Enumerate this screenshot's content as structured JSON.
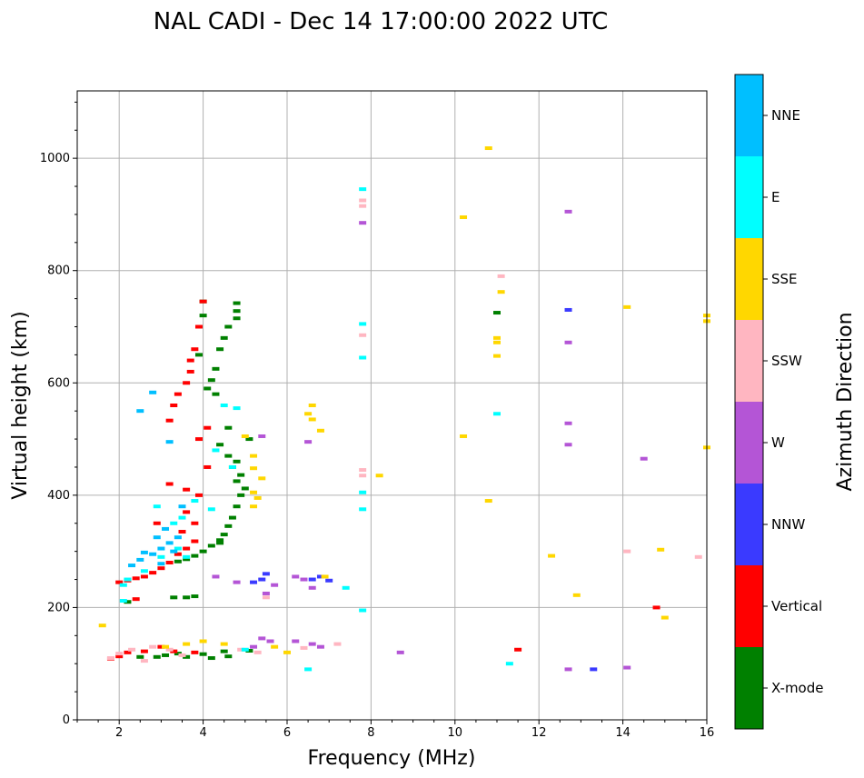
{
  "chart_data": {
    "type": "scatter",
    "title": "NAL CADI - Dec 14 17:00:00 2022 UTC",
    "xlabel": "Frequency (MHz)",
    "ylabel": "Virtual height (km)",
    "xlim": [
      1,
      16
    ],
    "ylim": [
      0,
      1120
    ],
    "xticks": [
      2,
      4,
      6,
      8,
      10,
      12,
      14,
      16
    ],
    "yticks": [
      0,
      200,
      400,
      600,
      800,
      1000
    ],
    "grid": true,
    "colorbar": {
      "title": "Azimuth Direction",
      "categories": [
        "X-mode",
        "Vertical",
        "NNW",
        "W",
        "SSW",
        "SSE",
        "E",
        "NNE"
      ],
      "colors": [
        "#008000",
        "#ff0000",
        "#3a3aff",
        "#b455d6",
        "#ffb6c1",
        "#ffd700",
        "#00ffff",
        "#00bfff"
      ]
    },
    "series": [
      {
        "name": "X-mode",
        "points": [
          [
            2.5,
            112
          ],
          [
            3.1,
            115
          ],
          [
            3.6,
            112
          ],
          [
            4.0,
            117
          ],
          [
            4.2,
            110
          ],
          [
            4.5,
            122
          ],
          [
            4.6,
            113
          ],
          [
            5.1,
            123
          ],
          [
            2.9,
            112
          ],
          [
            3.4,
            118
          ],
          [
            3.4,
            282
          ],
          [
            3.6,
            286
          ],
          [
            3.8,
            292
          ],
          [
            4.0,
            300
          ],
          [
            4.2,
            310
          ],
          [
            4.4,
            320
          ],
          [
            4.5,
            330
          ],
          [
            4.6,
            345
          ],
          [
            4.7,
            360
          ],
          [
            4.8,
            380
          ],
          [
            4.9,
            400
          ],
          [
            5.0,
            412
          ],
          [
            4.8,
            425
          ],
          [
            4.9,
            436
          ],
          [
            4.7,
            450
          ],
          [
            4.8,
            460
          ],
          [
            4.6,
            470
          ],
          [
            4.4,
            490
          ],
          [
            4.6,
            520
          ],
          [
            4.3,
            580
          ],
          [
            4.1,
            590
          ],
          [
            4.3,
            625
          ],
          [
            4.2,
            605
          ],
          [
            4.4,
            660
          ],
          [
            4.5,
            680
          ],
          [
            4.6,
            700
          ],
          [
            4.8,
            715
          ],
          [
            4.8,
            728
          ],
          [
            4.8,
            742
          ],
          [
            4.0,
            745
          ],
          [
            4.0,
            720
          ],
          [
            3.9,
            650
          ],
          [
            3.3,
            218
          ],
          [
            3.6,
            218
          ],
          [
            3.8,
            220
          ],
          [
            2.2,
            210
          ],
          [
            11.0,
            725
          ],
          [
            5.1,
            500
          ],
          [
            4.4,
            315
          ]
        ]
      },
      {
        "name": "Vertical",
        "points": [
          [
            1.8,
            109
          ],
          [
            2.0,
            113
          ],
          [
            2.2,
            120
          ],
          [
            2.6,
            122
          ],
          [
            3.0,
            130
          ],
          [
            3.3,
            122
          ],
          [
            3.8,
            120
          ],
          [
            2.0,
            245
          ],
          [
            2.2,
            248
          ],
          [
            2.4,
            252
          ],
          [
            2.6,
            255
          ],
          [
            2.8,
            262
          ],
          [
            3.0,
            270
          ],
          [
            3.2,
            280
          ],
          [
            3.4,
            295
          ],
          [
            3.6,
            305
          ],
          [
            3.8,
            318
          ],
          [
            3.5,
            335
          ],
          [
            3.8,
            350
          ],
          [
            3.6,
            370
          ],
          [
            3.9,
            400
          ],
          [
            3.6,
            410
          ],
          [
            3.2,
            420
          ],
          [
            3.2,
            533
          ],
          [
            3.3,
            560
          ],
          [
            3.4,
            580
          ],
          [
            3.6,
            600
          ],
          [
            3.7,
            620
          ],
          [
            3.7,
            640
          ],
          [
            3.8,
            660
          ],
          [
            3.9,
            700
          ],
          [
            4.0,
            745
          ],
          [
            2.4,
            215
          ],
          [
            2.9,
            350
          ],
          [
            4.1,
            450
          ],
          [
            14.8,
            200
          ],
          [
            11.5,
            125
          ],
          [
            3.9,
            500
          ],
          [
            4.1,
            520
          ]
        ]
      },
      {
        "name": "NNW",
        "points": [
          [
            5.5,
            260
          ],
          [
            5.4,
            250
          ],
          [
            5.2,
            245
          ],
          [
            6.6,
            250
          ],
          [
            6.8,
            255
          ],
          [
            7.0,
            248
          ],
          [
            12.7,
            730
          ],
          [
            13.3,
            90
          ]
        ]
      },
      {
        "name": "W",
        "points": [
          [
            5.4,
            145
          ],
          [
            5.6,
            140
          ],
          [
            6.2,
            140
          ],
          [
            6.6,
            135
          ],
          [
            6.8,
            130
          ],
          [
            5.5,
            225
          ],
          [
            5.7,
            240
          ],
          [
            6.2,
            255
          ],
          [
            6.6,
            235
          ],
          [
            6.4,
            250
          ],
          [
            12.7,
            905
          ],
          [
            12.7,
            672
          ],
          [
            12.7,
            528
          ],
          [
            12.7,
            490
          ],
          [
            14.5,
            465
          ],
          [
            14.1,
            93
          ],
          [
            12.7,
            90
          ],
          [
            8.7,
            120
          ],
          [
            4.3,
            255
          ],
          [
            4.8,
            245
          ],
          [
            6.5,
            495
          ],
          [
            7.8,
            885
          ],
          [
            5.4,
            505
          ],
          [
            5.2,
            130
          ]
        ]
      },
      {
        "name": "SSW",
        "points": [
          [
            1.8,
            110
          ],
          [
            2.0,
            118
          ],
          [
            2.3,
            125
          ],
          [
            2.6,
            105
          ],
          [
            3.2,
            125
          ],
          [
            3.5,
            115
          ],
          [
            4.9,
            125
          ],
          [
            5.3,
            120
          ],
          [
            6.4,
            128
          ],
          [
            5.5,
            218
          ],
          [
            7.8,
            925
          ],
          [
            7.8,
            915
          ],
          [
            7.8,
            685
          ],
          [
            7.8,
            445
          ],
          [
            7.8,
            435
          ],
          [
            11.1,
            790
          ],
          [
            14.1,
            300
          ],
          [
            15.8,
            290
          ],
          [
            7.2,
            135
          ],
          [
            2.8,
            130
          ]
        ]
      },
      {
        "name": "SSE",
        "points": [
          [
            3.1,
            130
          ],
          [
            3.6,
            135
          ],
          [
            4.0,
            140
          ],
          [
            4.5,
            135
          ],
          [
            6.6,
            560
          ],
          [
            6.5,
            545
          ],
          [
            6.6,
            535
          ],
          [
            6.8,
            515
          ],
          [
            5.2,
            380
          ],
          [
            5.3,
            395
          ],
          [
            5.2,
            405
          ],
          [
            5.4,
            430
          ],
          [
            5.2,
            448
          ],
          [
            5.2,
            470
          ],
          [
            5.0,
            505
          ],
          [
            8.2,
            435
          ],
          [
            10.2,
            895
          ],
          [
            10.8,
            1018
          ],
          [
            11.1,
            762
          ],
          [
            11.0,
            680
          ],
          [
            11.0,
            672
          ],
          [
            11.0,
            648
          ],
          [
            10.2,
            505
          ],
          [
            10.8,
            390
          ],
          [
            12.3,
            292
          ],
          [
            12.9,
            222
          ],
          [
            14.1,
            735
          ],
          [
            14.9,
            303
          ],
          [
            15.0,
            182
          ],
          [
            16.0,
            710
          ],
          [
            16.0,
            720
          ],
          [
            16.0,
            485
          ],
          [
            6.9,
            255
          ],
          [
            6.0,
            120
          ],
          [
            5.7,
            130
          ],
          [
            1.6,
            168
          ]
        ]
      },
      {
        "name": "E",
        "points": [
          [
            2.1,
            212
          ],
          [
            2.2,
            250
          ],
          [
            2.6,
            265
          ],
          [
            3.0,
            290
          ],
          [
            3.4,
            305
          ],
          [
            3.6,
            290
          ],
          [
            3.8,
            390
          ],
          [
            3.5,
            360
          ],
          [
            2.9,
            380
          ],
          [
            4.2,
            375
          ],
          [
            4.3,
            480
          ],
          [
            4.5,
            560
          ],
          [
            4.7,
            450
          ],
          [
            7.8,
            945
          ],
          [
            7.8,
            705
          ],
          [
            7.8,
            645
          ],
          [
            7.8,
            405
          ],
          [
            7.8,
            375
          ],
          [
            7.8,
            195
          ],
          [
            11.0,
            545
          ],
          [
            11.3,
            100
          ],
          [
            6.5,
            90
          ],
          [
            7.4,
            235
          ],
          [
            4.8,
            555
          ],
          [
            5.0,
            125
          ],
          [
            3.3,
            350
          ],
          [
            2.1,
            240
          ]
        ]
      },
      {
        "name": "NNE",
        "points": [
          [
            2.3,
            275
          ],
          [
            2.5,
            285
          ],
          [
            2.8,
            295
          ],
          [
            3.0,
            305
          ],
          [
            3.2,
            315
          ],
          [
            3.4,
            325
          ],
          [
            2.6,
            298
          ],
          [
            3.1,
            340
          ],
          [
            3.5,
            380
          ],
          [
            3.2,
            495
          ],
          [
            2.8,
            583
          ],
          [
            2.5,
            550
          ],
          [
            3.3,
            300
          ],
          [
            2.9,
            325
          ],
          [
            3.0,
            278
          ]
        ]
      }
    ]
  }
}
